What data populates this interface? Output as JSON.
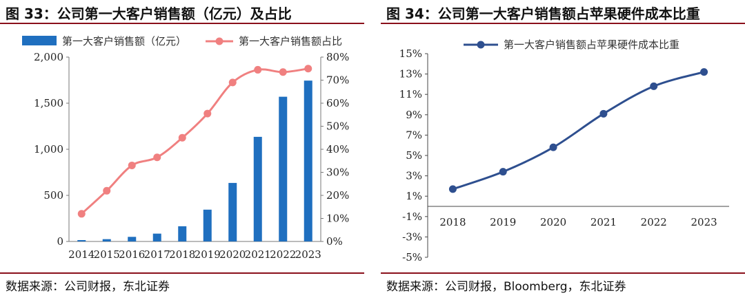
{
  "left": {
    "title": "图 33：公司第一大客户销售额（亿元）及占比",
    "source": "数据来源：公司财报，东北证券",
    "chart_data": {
      "type": "bar+line",
      "categories": [
        "2014",
        "2015",
        "2016",
        "2017",
        "2018",
        "2019",
        "2020",
        "2021",
        "2022",
        "2023"
      ],
      "series": [
        {
          "name": "第一大客户销售额（亿元）",
          "type": "bar",
          "axis": "left",
          "values": [
            15,
            25,
            50,
            85,
            165,
            345,
            635,
            1135,
            1570,
            1745
          ]
        },
        {
          "name": "第一大客户销售额占比",
          "type": "line",
          "axis": "right",
          "values": [
            12,
            22,
            33,
            36.5,
            45,
            55.5,
            69,
            74.5,
            73.5,
            75
          ]
        }
      ],
      "y_left": {
        "min": 0,
        "max": 2000,
        "ticks": [
          0,
          500,
          1000,
          1500,
          2000
        ],
        "tick_labels": [
          "0",
          "500",
          "1,000",
          "1,500",
          "2,000"
        ]
      },
      "y_right": {
        "min": 0,
        "max": 80,
        "ticks": [
          0,
          10,
          20,
          30,
          40,
          50,
          60,
          70,
          80
        ],
        "tick_labels": [
          "0%",
          "10%",
          "20%",
          "30%",
          "40%",
          "50%",
          "60%",
          "70%",
          "80%"
        ]
      },
      "legend": "top",
      "grid": false,
      "colors": {
        "bar": "#1f6fbf",
        "line": "#f08080"
      }
    }
  },
  "right": {
    "title": "图 34：公司第一大客户销售额占苹果硬件成本比重",
    "source": "数据来源：公司财报，Bloomberg，东北证券",
    "chart_data": {
      "type": "line",
      "categories": [
        "2018",
        "2019",
        "2020",
        "2021",
        "2022",
        "2023"
      ],
      "series": [
        {
          "name": "第一大客户销售额占苹果硬件成本比重",
          "values": [
            1.7,
            3.4,
            5.8,
            9.1,
            11.8,
            13.2
          ]
        }
      ],
      "y": {
        "min": -5,
        "max": 15,
        "ticks": [
          -5,
          -3,
          -1,
          1,
          3,
          5,
          7,
          9,
          11,
          13,
          15
        ],
        "tick_labels": [
          "-5%",
          "-3%",
          "-1%",
          "1%",
          "3%",
          "5%",
          "7%",
          "9%",
          "11%",
          "13%",
          "15%"
        ]
      },
      "legend": "top",
      "grid": false,
      "colors": {
        "line": "#2e4f8f"
      }
    }
  }
}
